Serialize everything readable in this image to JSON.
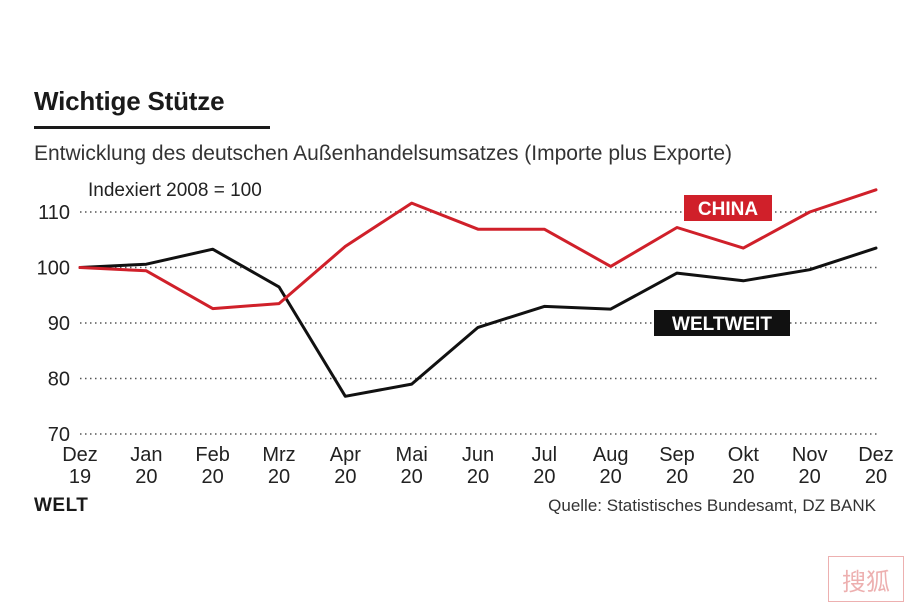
{
  "title": "Wichtige Stütze",
  "subtitle": "Entwicklung des deutschen Außenhandelsumsatzes (Importe plus Exporte)",
  "logo": "WELT",
  "source": "Quelle: Statistisches Bundesamt, DZ BANK",
  "stamp_text": "搜狐",
  "chart_data": {
    "type": "line",
    "note": "Indexiert 2008 = 100",
    "x": [
      [
        "Dez",
        "19"
      ],
      [
        "Jan",
        "20"
      ],
      [
        "Feb",
        "20"
      ],
      [
        "Mrz",
        "20"
      ],
      [
        "Apr",
        "20"
      ],
      [
        "Mai",
        "20"
      ],
      [
        "Jun",
        "20"
      ],
      [
        "Jul",
        "20"
      ],
      [
        "Aug",
        "20"
      ],
      [
        "Sep",
        "20"
      ],
      [
        "Okt",
        "20"
      ],
      [
        "Nov",
        "20"
      ],
      [
        "Dez",
        "20"
      ]
    ],
    "ylim": [
      70,
      115
    ],
    "yticks": [
      70,
      80,
      90,
      100,
      110
    ],
    "grid": "horizontal dotted",
    "series": [
      {
        "name": "CHINA",
        "color": "#d0202a",
        "values": [
          100,
          99.4,
          92.6,
          93.5,
          103.8,
          111.6,
          106.9,
          106.9,
          100.2,
          107.2,
          103.5,
          110,
          114
        ]
      },
      {
        "name": "WELTWEIT",
        "color": "#111111",
        "values": [
          100,
          100.6,
          103.3,
          96.5,
          76.8,
          79,
          89.2,
          93,
          92.5,
          99,
          97.6,
          99.6,
          103.5
        ]
      }
    ]
  }
}
